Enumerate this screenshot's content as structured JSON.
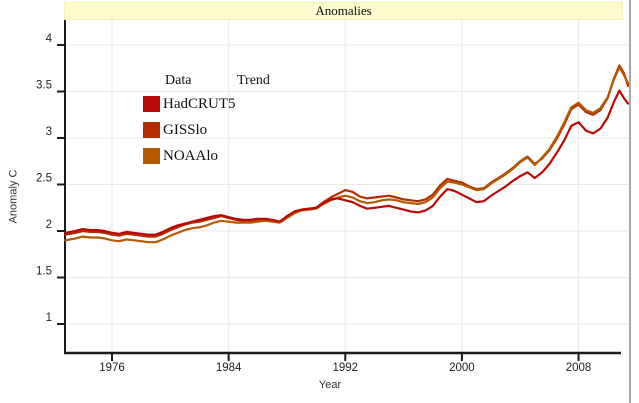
{
  "window": {
    "title": "Anomalies"
  },
  "legend": {
    "data_header": "Data",
    "trend_header": "Trend",
    "items": [
      {
        "label": "HadCRUT5",
        "color": "#b90806"
      },
      {
        "label": "GISSlo",
        "color": "#b22d01"
      },
      {
        "label": "NOAAlo",
        "color": "#b55a01"
      }
    ]
  },
  "chart_data": {
    "type": "line",
    "title": "Anomalies",
    "xlabel": "Year",
    "ylabel": "Anomaly C",
    "xlim": [
      1972.75,
      2011.5
    ],
    "ylim": [
      0.69,
      4.27
    ],
    "x_ticks": [
      1976,
      1984,
      1992,
      2000,
      2008
    ],
    "y_ticks": [
      4,
      3.5,
      3,
      2.5,
      2,
      1.5,
      1
    ],
    "grid": true,
    "legend_position": "top-left-inside",
    "grid_color": "#e9e9e9",
    "axis_color": "#1c1c1c",
    "x": [
      1972.8,
      1973.5,
      1974,
      1974.5,
      1975,
      1975.5,
      1976,
      1976.5,
      1977,
      1977.5,
      1978,
      1978.5,
      1979,
      1979.5,
      1980,
      1980.5,
      1981,
      1981.5,
      1982,
      1982.5,
      1983,
      1983.5,
      1984,
      1984.5,
      1985,
      1985.5,
      1986,
      1986.5,
      1987,
      1987.5,
      1988,
      1988.5,
      1989,
      1989.5,
      1990,
      1990.5,
      1991,
      1991.5,
      1992,
      1992.5,
      1993,
      1993.5,
      1994,
      1994.5,
      1995,
      1995.5,
      1996,
      1996.5,
      1997,
      1997.5,
      1998,
      1998.5,
      1999,
      1999.5,
      2000,
      2000.5,
      2001,
      2001.5,
      2002,
      2002.5,
      2003,
      2003.5,
      2004,
      2004.5,
      2005,
      2005.5,
      2006,
      2006.5,
      2007,
      2007.5,
      2008,
      2008.5,
      2009,
      2009.5,
      2010,
      2010.4,
      2010.8,
      2011.1,
      2011.4
    ],
    "series": [
      {
        "name": "HadCRUT5",
        "color": "#b90806",
        "values": [
          1.98,
          2.0,
          2.02,
          2.01,
          2.01,
          2.0,
          1.98,
          1.97,
          1.99,
          1.98,
          1.97,
          1.96,
          1.96,
          1.99,
          2.03,
          2.06,
          2.08,
          2.1,
          2.12,
          2.14,
          2.16,
          2.17,
          2.15,
          2.13,
          2.12,
          2.12,
          2.13,
          2.13,
          2.12,
          2.1,
          2.16,
          2.21,
          2.23,
          2.24,
          2.25,
          2.3,
          2.34,
          2.35,
          2.33,
          2.31,
          2.27,
          2.24,
          2.25,
          2.26,
          2.27,
          2.25,
          2.23,
          2.21,
          2.2,
          2.22,
          2.27,
          2.37,
          2.45,
          2.43,
          2.39,
          2.35,
          2.31,
          2.32,
          2.38,
          2.43,
          2.48,
          2.54,
          2.59,
          2.63,
          2.57,
          2.63,
          2.72,
          2.84,
          2.97,
          3.13,
          3.17,
          3.08,
          3.05,
          3.1,
          3.22,
          3.38,
          3.51,
          3.43,
          3.37
        ]
      },
      {
        "name": "GISSlo",
        "color": "#b22d01",
        "values": [
          1.96,
          1.98,
          2.0,
          1.99,
          1.99,
          1.98,
          1.96,
          1.95,
          1.97,
          1.96,
          1.95,
          1.94,
          1.94,
          1.97,
          2.01,
          2.04,
          2.07,
          2.09,
          2.1,
          2.12,
          2.14,
          2.16,
          2.14,
          2.12,
          2.11,
          2.11,
          2.12,
          2.12,
          2.11,
          2.1,
          2.15,
          2.2,
          2.23,
          2.24,
          2.25,
          2.31,
          2.36,
          2.4,
          2.44,
          2.42,
          2.37,
          2.35,
          2.36,
          2.37,
          2.38,
          2.36,
          2.34,
          2.33,
          2.32,
          2.34,
          2.39,
          2.49,
          2.56,
          2.54,
          2.52,
          2.48,
          2.45,
          2.46,
          2.52,
          2.57,
          2.62,
          2.68,
          2.75,
          2.8,
          2.72,
          2.78,
          2.87,
          2.99,
          3.14,
          3.31,
          3.36,
          3.28,
          3.25,
          3.3,
          3.43,
          3.63,
          3.78,
          3.7,
          3.56
        ]
      },
      {
        "name": "NOAAlo",
        "color": "#b55a01",
        "values": [
          1.9,
          1.92,
          1.94,
          1.93,
          1.93,
          1.92,
          1.9,
          1.89,
          1.91,
          1.9,
          1.89,
          1.88,
          1.88,
          1.91,
          1.95,
          1.98,
          2.01,
          2.03,
          2.04,
          2.06,
          2.09,
          2.11,
          2.1,
          2.09,
          2.09,
          2.09,
          2.1,
          2.11,
          2.1,
          2.09,
          2.14,
          2.19,
          2.22,
          2.23,
          2.24,
          2.29,
          2.33,
          2.36,
          2.38,
          2.36,
          2.32,
          2.3,
          2.31,
          2.33,
          2.34,
          2.33,
          2.31,
          2.3,
          2.29,
          2.31,
          2.36,
          2.46,
          2.53,
          2.52,
          2.5,
          2.47,
          2.44,
          2.45,
          2.51,
          2.56,
          2.61,
          2.67,
          2.74,
          2.79,
          2.71,
          2.79,
          2.88,
          3.01,
          3.16,
          3.33,
          3.38,
          3.3,
          3.27,
          3.32,
          3.44,
          3.62,
          3.76,
          3.68,
          3.59
        ]
      }
    ]
  }
}
